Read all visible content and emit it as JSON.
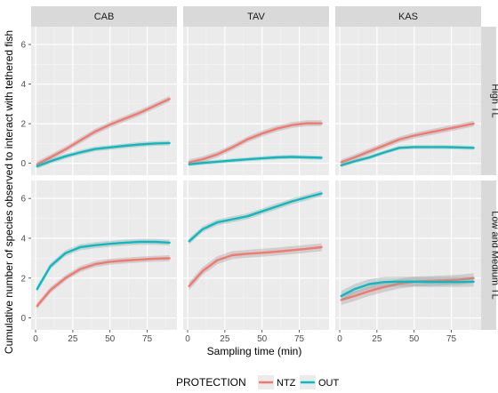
{
  "chart_data": {
    "type": "line",
    "xlabel": "Sampling time (min)",
    "ylabel": "Cumulative number of species observed to interact with tethered fish",
    "xlim": [
      -3,
      95
    ],
    "ylim": [
      -0.6,
      6.9
    ],
    "xticks": [
      0,
      25,
      50,
      75
    ],
    "yticks": [
      0,
      2,
      4,
      6
    ],
    "columns": [
      "CAB",
      "TAV",
      "KAS"
    ],
    "rows": [
      "High TL",
      "Low and Medium TL"
    ],
    "grid": true,
    "legend": {
      "title": "PROTECTION",
      "position": "bottom",
      "entries": [
        {
          "label": "NTZ",
          "color": "#F8766D"
        },
        {
          "label": "OUT",
          "color": "#00BFC4"
        }
      ]
    },
    "x": [
      1,
      10,
      20,
      30,
      40,
      50,
      60,
      70,
      80,
      90
    ],
    "panels": [
      {
        "row": "High TL",
        "col": "CAB",
        "series": [
          {
            "name": "NTZ",
            "values": [
              -0.05,
              0.3,
              0.7,
              1.15,
              1.6,
              1.95,
              2.25,
              2.55,
              2.9,
              3.25
            ],
            "band": 0.15
          },
          {
            "name": "OUT",
            "values": [
              -0.15,
              0.1,
              0.35,
              0.55,
              0.72,
              0.8,
              0.88,
              0.95,
              1.0,
              1.02
            ],
            "band": 0.12
          }
        ]
      },
      {
        "row": "High TL",
        "col": "TAV",
        "series": [
          {
            "name": "NTZ",
            "values": [
              0.05,
              0.2,
              0.45,
              0.8,
              1.2,
              1.5,
              1.75,
              1.93,
              2.02,
              2.02
            ],
            "band": 0.15
          },
          {
            "name": "OUT",
            "values": [
              -0.05,
              0.02,
              0.08,
              0.14,
              0.2,
              0.25,
              0.3,
              0.32,
              0.3,
              0.28
            ],
            "band": 0.1
          }
        ]
      },
      {
        "row": "High TL",
        "col": "KAS",
        "series": [
          {
            "name": "NTZ",
            "values": [
              0.05,
              0.3,
              0.6,
              0.9,
              1.2,
              1.4,
              1.55,
              1.7,
              1.85,
              2.0
            ],
            "band": 0.15
          },
          {
            "name": "OUT",
            "values": [
              -0.1,
              0.1,
              0.3,
              0.55,
              0.78,
              0.82,
              0.82,
              0.82,
              0.8,
              0.78
            ],
            "band": 0.1
          }
        ]
      },
      {
        "row": "Low and Medium TL",
        "col": "CAB",
        "series": [
          {
            "name": "NTZ",
            "values": [
              0.6,
              1.4,
              2.0,
              2.45,
              2.7,
              2.82,
              2.88,
              2.93,
              2.97,
              3.0
            ],
            "band": 0.15
          },
          {
            "name": "OUT",
            "values": [
              1.45,
              2.6,
              3.25,
              3.55,
              3.65,
              3.72,
              3.78,
              3.82,
              3.82,
              3.78
            ],
            "band": 0.15
          }
        ]
      },
      {
        "row": "Low and Medium TL",
        "col": "TAV",
        "series": [
          {
            "name": "NTZ",
            "values": [
              1.6,
              2.35,
              2.9,
              3.15,
              3.22,
              3.27,
              3.33,
              3.4,
              3.47,
              3.55
            ],
            "band": 0.2
          },
          {
            "name": "OUT",
            "values": [
              3.85,
              4.45,
              4.8,
              4.95,
              5.1,
              5.35,
              5.6,
              5.85,
              6.05,
              6.25
            ],
            "band": 0.15
          }
        ]
      },
      {
        "row": "Low and Medium TL",
        "col": "KAS",
        "series": [
          {
            "name": "NTZ",
            "values": [
              0.9,
              1.1,
              1.35,
              1.55,
              1.72,
              1.82,
              1.85,
              1.88,
              1.92,
              2.0
            ],
            "band": 0.25
          },
          {
            "name": "OUT",
            "values": [
              1.1,
              1.45,
              1.7,
              1.8,
              1.82,
              1.82,
              1.8,
              1.8,
              1.8,
              1.82
            ],
            "band": 0.25
          }
        ]
      }
    ]
  }
}
